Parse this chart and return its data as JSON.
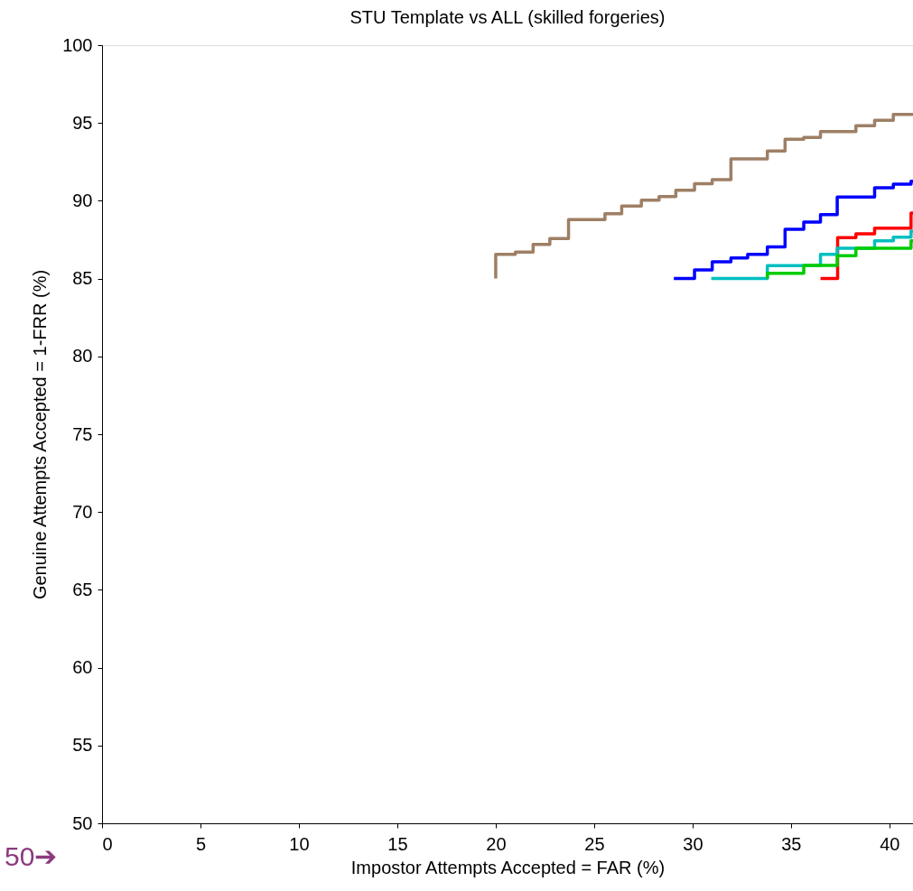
{
  "chart_data": {
    "type": "step",
    "title": "STU Template vs ALL (skilled forgeries)",
    "xlabel": "Impostor Attempts Accepted = FAR (%)",
    "ylabel": "Genuine Attempts Accepted = 1-FRR (%)",
    "xlim": [
      0,
      41.2
    ],
    "ylim": [
      50,
      100
    ],
    "xticks": [
      0,
      5,
      10,
      15,
      20,
      25,
      30,
      35,
      40
    ],
    "yticks": [
      50,
      55,
      60,
      65,
      70,
      75,
      80,
      85,
      90,
      95,
      100
    ],
    "grid": false,
    "legend": false,
    "line_style": "solid",
    "marker": "none",
    "series": [
      {
        "color": "#9e7f65",
        "x": [
          20.0,
          20.0,
          21.0,
          21.9,
          22.75,
          23.7,
          25.55,
          26.4,
          27.4,
          28.3,
          29.15,
          30.1,
          31.0,
          31.95,
          33.8,
          34.7,
          35.65,
          36.5,
          38.3,
          39.25,
          40.2,
          41.2
        ],
        "values": [
          85.0,
          86.56,
          86.7,
          87.2,
          87.57,
          88.79,
          89.17,
          89.66,
          90.04,
          90.27,
          90.68,
          91.1,
          91.36,
          92.69,
          93.2,
          93.95,
          94.07,
          94.45,
          94.82,
          95.17,
          95.55,
          95.55
        ]
      },
      {
        "color": "#0000ff",
        "x": [
          29.05,
          30.1,
          31.0,
          31.95,
          32.8,
          33.8,
          34.7,
          35.65,
          36.5,
          37.35,
          39.25,
          40.2,
          41.1,
          41.2
        ],
        "values": [
          85.0,
          85.56,
          86.08,
          86.33,
          86.56,
          87.04,
          88.17,
          88.63,
          89.11,
          90.24,
          90.84,
          91.07,
          91.26,
          91.26
        ]
      },
      {
        "color": "#ff0000",
        "x": [
          36.5,
          37.37,
          38.3,
          39.25,
          41.1,
          41.2
        ],
        "values": [
          85.0,
          87.63,
          87.88,
          88.24,
          89.21,
          89.21
        ]
      },
      {
        "color": "#00bfbf",
        "x": [
          30.95,
          33.8,
          36.5,
          37.35,
          39.25,
          40.2,
          41.1,
          41.2
        ],
        "values": [
          85.0,
          85.83,
          86.56,
          86.95,
          87.43,
          87.66,
          88.05,
          88.05
        ]
      },
      {
        "color": "#00cc00",
        "x": [
          33.8,
          33.8,
          35.65,
          37.35,
          38.3,
          41.1,
          41.2
        ],
        "values": [
          85.0,
          85.34,
          85.85,
          86.47,
          86.95,
          87.43,
          87.43
        ]
      }
    ],
    "annotations": [
      "50➔"
    ]
  }
}
